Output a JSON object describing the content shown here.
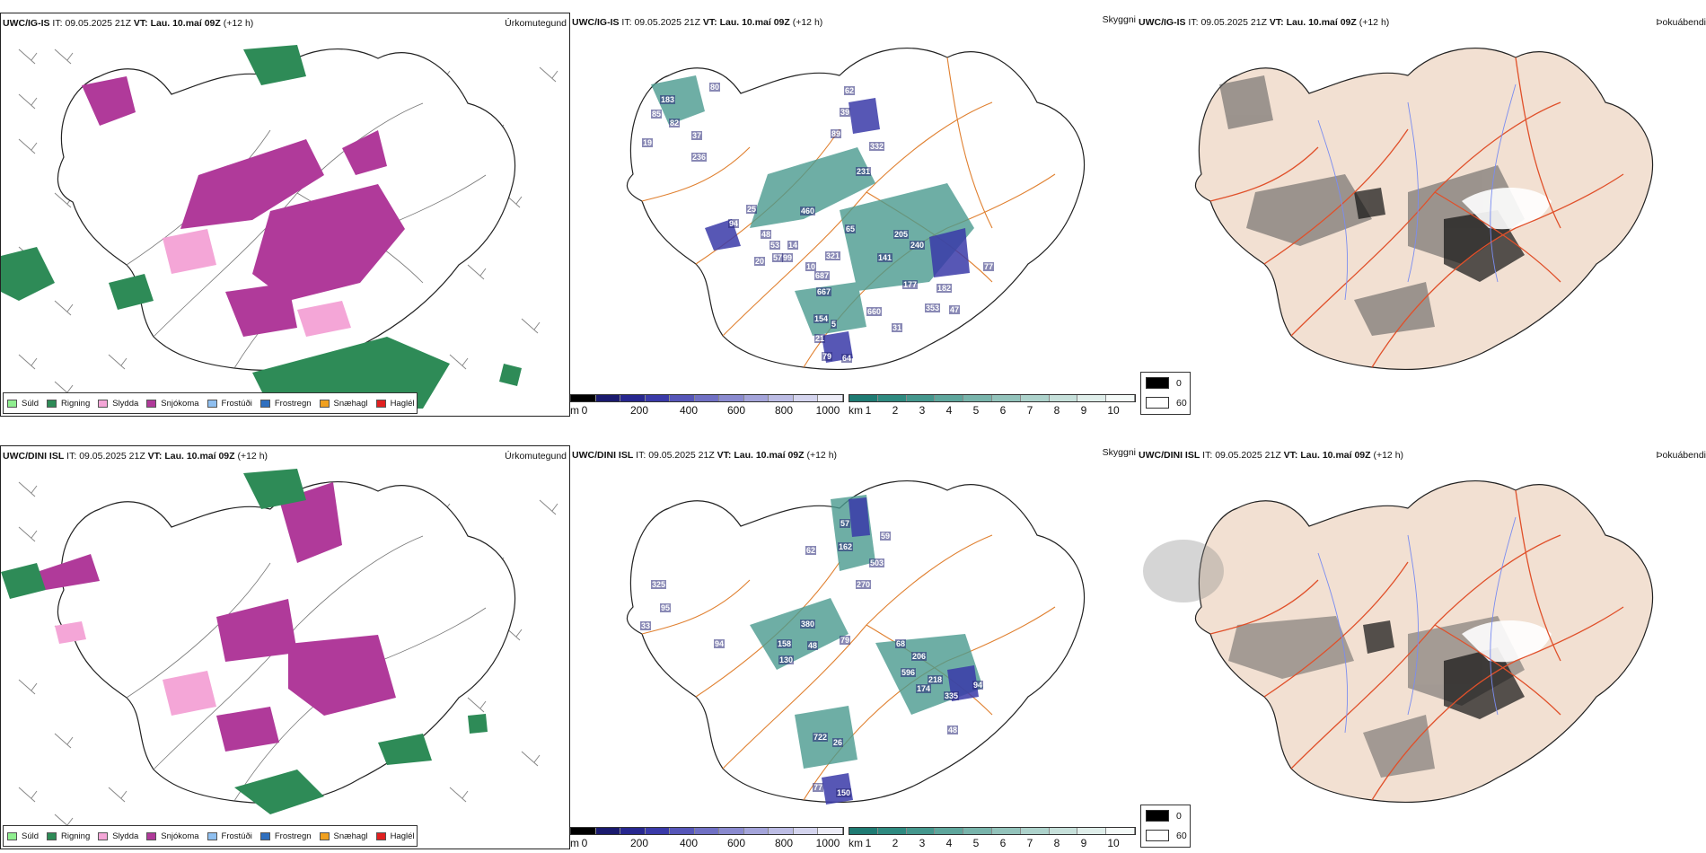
{
  "rows": [
    {
      "model_label": "UWC/IG-IS",
      "it_label": "IT:",
      "it_value": "09.05.2025 21Z",
      "vt_label": "VT:",
      "vt_value": "Lau. 10.maí 09Z",
      "lead": "(+12 h)",
      "field_precip": "Úrkomutegund",
      "field_visibility": "Skyggni",
      "field_fog": "Þokuábendi",
      "visibility_labels": [
        "183",
        "85",
        "82",
        "37",
        "80",
        "236",
        "19",
        "62",
        "39",
        "89",
        "332",
        "231",
        "25",
        "460",
        "94",
        "53",
        "14",
        "48",
        "57",
        "20",
        "99",
        "10",
        "65",
        "205",
        "240",
        "141",
        "321",
        "687",
        "177",
        "182",
        "77",
        "667",
        "154",
        "5",
        "660",
        "353",
        "47",
        "31",
        "21",
        "79",
        "64"
      ]
    },
    {
      "model_label": "UWC/DINI ISL",
      "it_label": "IT:",
      "it_value": "09.05.2025 21Z",
      "vt_label": "VT:",
      "vt_value": "Lau. 10.maí 09Z",
      "lead": "(+12 h)",
      "field_precip": "Úrkomutegund",
      "field_visibility": "Skyggni",
      "field_fog": "Þokuábendi",
      "visibility_labels": [
        "59",
        "57",
        "62",
        "503",
        "162",
        "270",
        "325",
        "95",
        "33",
        "380",
        "79",
        "94",
        "158",
        "48",
        "130",
        "68",
        "206",
        "596",
        "218",
        "174",
        "335",
        "94",
        "48",
        "722",
        "26",
        "77",
        "150"
      ]
    }
  ],
  "precip_legend": [
    {
      "label": "Súld",
      "color": "#90ee90"
    },
    {
      "label": "Rigning",
      "color": "#2e8b57"
    },
    {
      "label": "Slydda",
      "color": "#f4a6d7"
    },
    {
      "label": "Snjókoma",
      "color": "#b03a9a"
    },
    {
      "label": "Frostúði",
      "color": "#8fbfef"
    },
    {
      "label": "Frostregn",
      "color": "#2f6fbf"
    },
    {
      "label": "Snæhagl",
      "color": "#f0a020"
    },
    {
      "label": "Haglél",
      "color": "#e02020"
    }
  ],
  "visibility_scale_m": {
    "unit": "m",
    "ticks": [
      "0",
      "200",
      "400",
      "600",
      "800",
      "1000"
    ],
    "colors": [
      "#000000",
      "#1a1a6e",
      "#27278f",
      "#3a3aa8",
      "#5656b8",
      "#7070c4",
      "#8a8acf",
      "#a4a4da",
      "#bcbce4",
      "#d4d4ee",
      "#ececf7"
    ]
  },
  "visibility_scale_km": {
    "unit": "km",
    "ticks": [
      "1",
      "2",
      "3",
      "4",
      "5",
      "6",
      "7",
      "8",
      "9",
      "10"
    ],
    "colors": [
      "#1f7b73",
      "#2e8a80",
      "#44978d",
      "#5ea69c",
      "#78b4ab",
      "#93c3bb",
      "#add2cb",
      "#c6e0da",
      "#dfeeea",
      "#f4faf8"
    ]
  },
  "fog_legend": [
    {
      "label": "0",
      "color": "#000000"
    },
    {
      "label": "60",
      "color": "#ffffff"
    }
  ],
  "colors": {
    "land_fog": "#f2e0d2",
    "roads_orange": "#e08030",
    "roads_red": "#e0502a",
    "rivers": "#7a8cf0",
    "coast": "#111111"
  }
}
